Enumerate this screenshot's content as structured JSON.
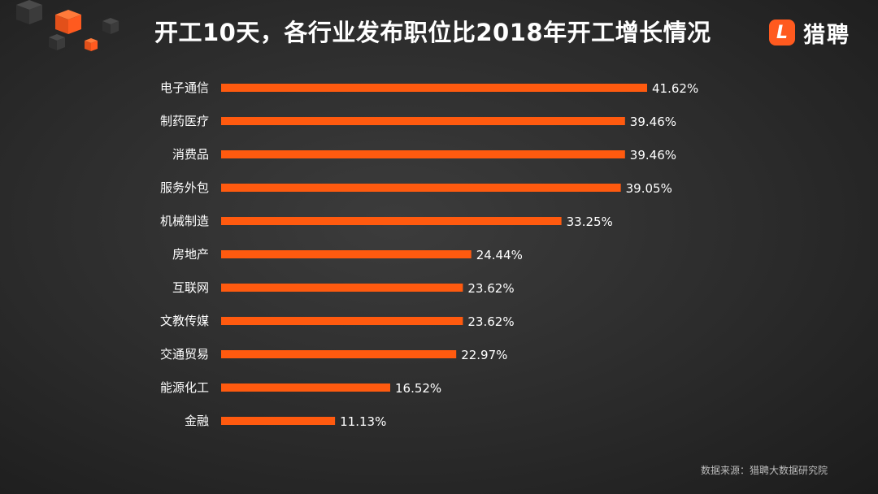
{
  "title": "开工10天，各行业发布职位比2018年开工增长情况",
  "logo": {
    "mark": "L",
    "text": "猎聘",
    "color": "#ff5a1f"
  },
  "source": "数据来源：猎聘大数据研究院",
  "colors": {
    "bar": "#ff5a0f",
    "cube_orange": "#ff5a1f",
    "cube_grey": "#3a3a3a"
  },
  "chart_data": {
    "type": "bar",
    "orientation": "horizontal",
    "categories": [
      "电子通信",
      "制药医疗",
      "消费品",
      "服务外包",
      "机械制造",
      "房地产",
      "互联网",
      "文教传媒",
      "交通贸易",
      "能源化工",
      "金融"
    ],
    "values": [
      41.62,
      39.46,
      39.46,
      39.05,
      33.25,
      24.44,
      23.62,
      23.62,
      22.97,
      16.52,
      11.13
    ],
    "value_labels": [
      "41.62%",
      "39.46%",
      "39.46%",
      "39.05%",
      "33.25%",
      "24.44%",
      "23.62%",
      "23.62%",
      "22.97%",
      "16.52%",
      "11.13%"
    ],
    "unit": "%",
    "xlim": [
      0,
      41.62
    ],
    "grid": false,
    "legend": "none"
  }
}
